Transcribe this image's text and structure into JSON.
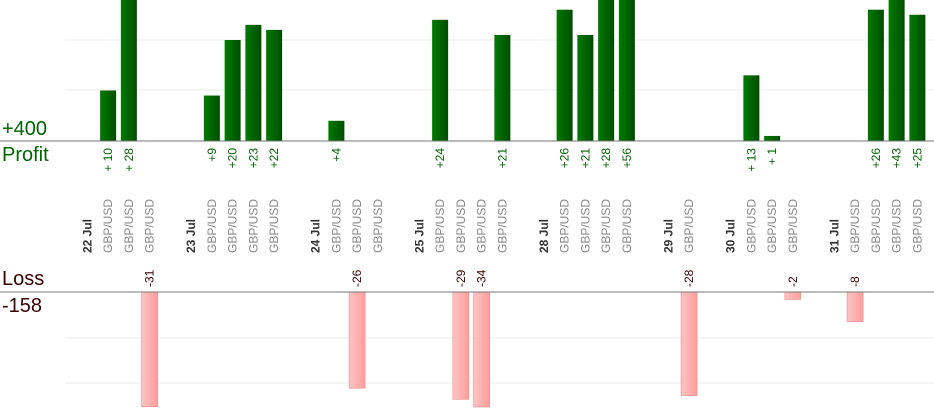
{
  "labels": {
    "profit_total": "+400",
    "profit_label": "Profit",
    "loss_label": "Loss",
    "loss_total": "-158"
  },
  "colors": {
    "profit_bar": "#006400",
    "loss_bar": "#ffb3b3",
    "profit_text": "#006400",
    "loss_text": "#3a0000",
    "slot_text": "#888888",
    "date_text": "#333333"
  },
  "chart_data": {
    "type": "bar",
    "title": "",
    "slots": [
      {
        "date": "22 Jul"
      },
      {
        "label": "GBP/USD",
        "value": 10,
        "value_label": "+ 10"
      },
      {
        "label": "GBP/USD",
        "value": 28,
        "value_label": "+ 28"
      },
      {
        "label": "GBP/USD",
        "value": -31,
        "value_label": "-31"
      },
      {
        "date": ""
      },
      {
        "date": "23 Jul"
      },
      {
        "label": "GBP/USD",
        "value": 9,
        "value_label": "+9"
      },
      {
        "label": "GBP/USD",
        "value": 20,
        "value_label": "+20"
      },
      {
        "label": "GBP/USD",
        "value": 23,
        "value_label": "+23"
      },
      {
        "label": "GBP/USD",
        "value": 22,
        "value_label": "+22"
      },
      {
        "date": ""
      },
      {
        "date": "24 Jul"
      },
      {
        "label": "GBP/USD",
        "value": 4,
        "value_label": "+4"
      },
      {
        "label": "GBP/USD",
        "value": -26,
        "value_label": "-26"
      },
      {
        "label": "GBP/USD",
        "value": null,
        "value_label": ""
      },
      {
        "date": ""
      },
      {
        "date": "25 Jul"
      },
      {
        "label": "GBP/USD",
        "value": 24,
        "value_label": "+24"
      },
      {
        "label": "GBP/USD",
        "value": -29,
        "value_label": "-29"
      },
      {
        "label": "GBP/USD",
        "value": -34,
        "value_label": "-34"
      },
      {
        "label": "GBP/USD",
        "value": 21,
        "value_label": "+21"
      },
      {
        "date": ""
      },
      {
        "date": "28 Jul"
      },
      {
        "label": "GBP/USD",
        "value": 26,
        "value_label": "+26"
      },
      {
        "label": "GBP/USD",
        "value": 21,
        "value_label": "+21"
      },
      {
        "label": "GBP/USD",
        "value": 28,
        "value_label": "+28"
      },
      {
        "label": "GBP/USD",
        "value": 56,
        "value_label": "+56"
      },
      {
        "date": ""
      },
      {
        "date": "29 Jul"
      },
      {
        "label": "GBP/USD",
        "value": -28,
        "value_label": "-28"
      },
      {
        "date": ""
      },
      {
        "date": "30 Jul"
      },
      {
        "label": "GBP/USD",
        "value": 13,
        "value_label": "+ 13"
      },
      {
        "label": "GBP/USD",
        "value": 1,
        "value_label": "+ 1"
      },
      {
        "label": "GBP/USD",
        "value": -2,
        "value_label": "-2"
      },
      {
        "date": ""
      },
      {
        "date": "31 Jul"
      },
      {
        "label": "GBP/USD",
        "value": -8,
        "value_label": "-8"
      },
      {
        "label": "GBP/USD",
        "value": 26,
        "value_label": "+26"
      },
      {
        "label": "GBP/USD",
        "value": 43,
        "value_label": "+43"
      },
      {
        "label": "GBP/USD",
        "value": 25,
        "value_label": "+25"
      }
    ],
    "grid": true
  }
}
